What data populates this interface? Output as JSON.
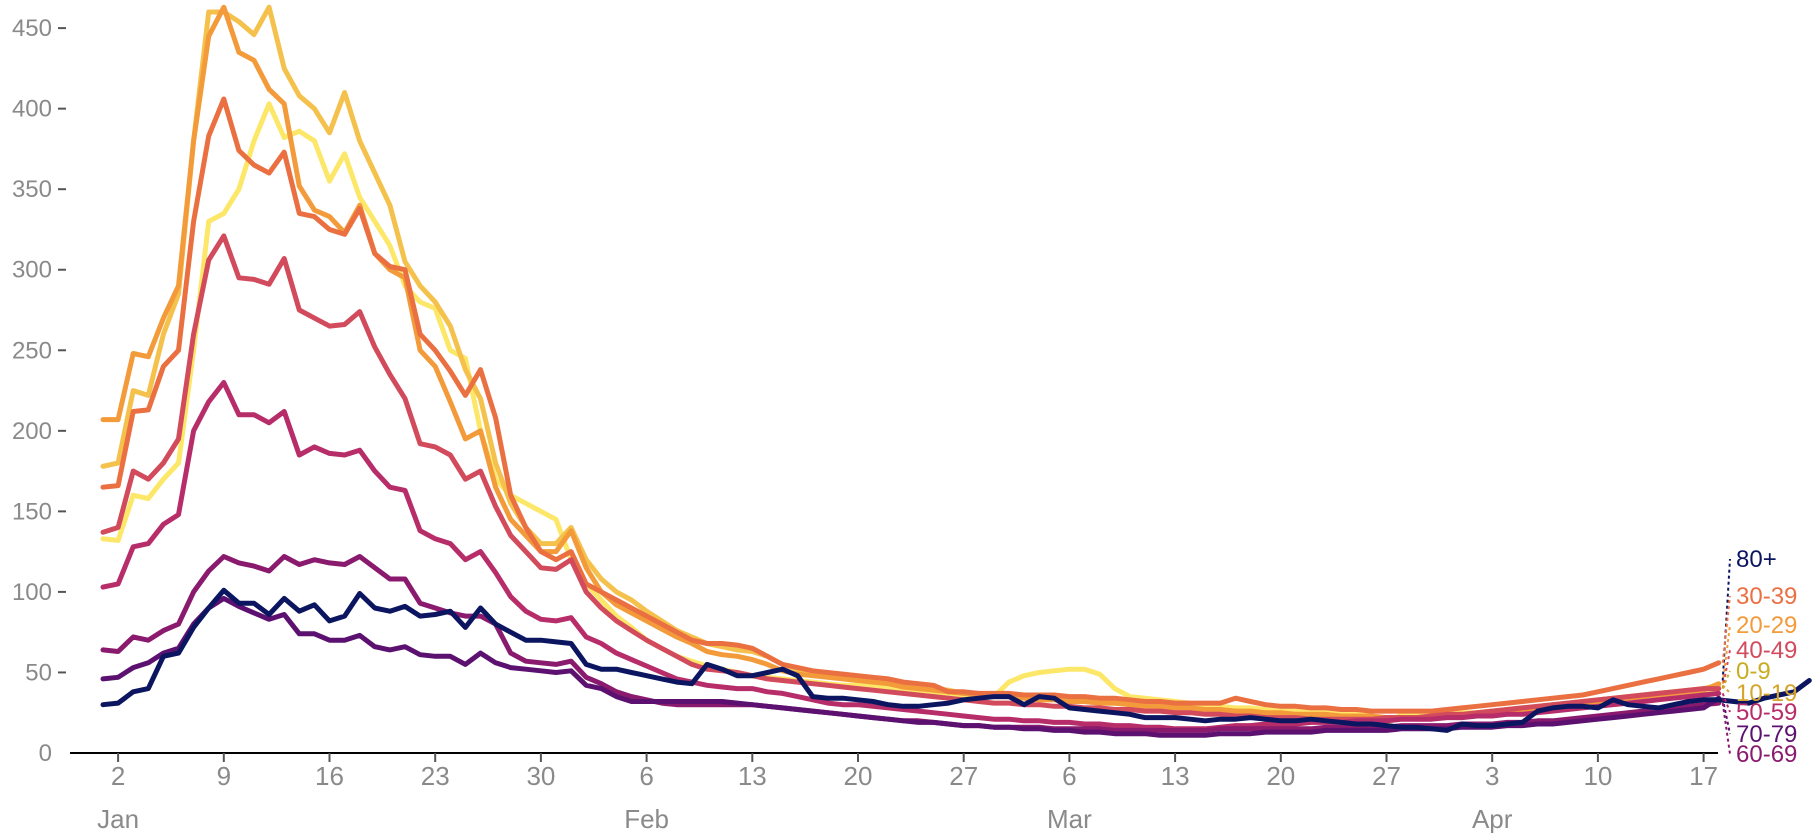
{
  "chart_data": {
    "type": "line",
    "x_start": "2021-01-01",
    "ylim": [
      0,
      460
    ],
    "y_ticks": [
      "0",
      "50",
      "100",
      "150",
      "200",
      "250",
      "300",
      "350",
      "400",
      "450"
    ],
    "x_tick_days": [
      "2",
      "9",
      "16",
      "23",
      "30",
      "6",
      "13",
      "20",
      "27",
      "6",
      "13",
      "20",
      "27",
      "3",
      "10",
      "17"
    ],
    "x_month_labels": [
      "Jan",
      "Feb",
      "Mar",
      "Apr"
    ],
    "grid": false,
    "legend": "right-inline",
    "series": [
      {
        "name": "0-9",
        "color": "#fde768",
        "values": [
          133,
          132,
          160,
          158,
          170,
          180,
          250,
          330,
          335,
          350,
          380,
          403,
          382,
          386,
          380,
          355,
          372,
          345,
          330,
          315,
          290,
          280,
          276,
          250,
          245,
          200,
          170,
          160,
          155,
          150,
          145,
          120,
          105,
          95,
          85,
          78,
          70,
          65,
          60,
          57,
          54,
          52,
          50,
          48,
          47,
          46,
          45,
          44,
          43,
          42,
          42,
          41,
          40,
          39,
          38,
          37,
          36,
          36,
          35,
          35,
          44,
          48,
          50,
          51,
          52,
          52,
          49,
          40,
          35,
          34,
          33,
          32,
          31,
          30,
          29,
          28,
          28,
          27,
          26,
          26,
          25,
          25,
          24,
          24,
          23,
          18,
          24,
          24,
          24,
          24,
          25,
          25,
          26,
          26,
          27,
          28,
          29,
          30,
          31,
          32,
          33,
          34,
          35,
          36,
          36,
          37,
          38,
          40
        ]
      },
      {
        "name": "10-19",
        "color": "#f5c14d",
        "values": [
          178,
          180,
          225,
          222,
          260,
          285,
          380,
          460,
          460,
          454,
          446,
          463,
          425,
          408,
          400,
          385,
          410,
          380,
          360,
          340,
          305,
          290,
          280,
          265,
          238,
          220,
          180,
          155,
          140,
          130,
          130,
          140,
          120,
          108,
          100,
          95,
          88,
          82,
          76,
          72,
          68,
          66,
          64,
          63,
          60,
          55,
          52,
          50,
          48,
          47,
          46,
          45,
          44,
          42,
          41,
          40,
          39,
          37,
          36,
          35,
          35,
          34,
          33,
          33,
          32,
          32,
          31,
          31,
          30,
          29,
          28,
          28,
          27,
          27,
          26,
          26,
          25,
          25,
          24,
          24,
          23,
          23,
          23,
          22,
          22,
          22,
          22,
          22,
          23,
          23,
          24,
          25,
          26,
          27,
          28,
          29,
          30,
          31,
          32,
          33,
          34,
          35,
          36,
          37,
          38,
          39,
          40,
          42
        ]
      },
      {
        "name": "20-29",
        "color": "#f39b3a",
        "values": [
          207,
          207,
          248,
          246,
          270,
          290,
          380,
          445,
          463,
          435,
          430,
          412,
          403,
          352,
          337,
          333,
          323,
          340,
          310,
          300,
          295,
          250,
          240,
          218,
          195,
          200,
          165,
          145,
          135,
          125,
          125,
          138,
          115,
          100,
          92,
          87,
          82,
          77,
          72,
          68,
          63,
          61,
          60,
          58,
          55,
          51,
          49,
          48,
          47,
          46,
          45,
          44,
          43,
          41,
          40,
          39,
          38,
          37,
          36,
          35,
          35,
          34,
          33,
          33,
          32,
          32,
          31,
          31,
          30,
          29,
          29,
          28,
          28,
          27,
          27,
          26,
          26,
          25,
          25,
          24,
          24,
          24,
          23,
          23,
          23,
          22,
          22,
          22,
          22,
          23,
          23,
          24,
          25,
          26,
          27,
          28,
          29,
          30,
          31,
          32,
          33,
          34,
          35,
          36,
          37,
          38,
          39,
          43
        ]
      },
      {
        "name": "30-39",
        "color": "#ea7042",
        "values": [
          165,
          166,
          212,
          213,
          240,
          250,
          330,
          383,
          406,
          374,
          365,
          360,
          373,
          335,
          333,
          325,
          322,
          338,
          310,
          302,
          300,
          260,
          250,
          237,
          222,
          238,
          208,
          160,
          140,
          125,
          120,
          125,
          105,
          100,
          95,
          90,
          85,
          80,
          75,
          70,
          68,
          68,
          67,
          65,
          60,
          55,
          53,
          51,
          50,
          49,
          48,
          47,
          46,
          44,
          43,
          42,
          38,
          38,
          37,
          37,
          37,
          36,
          36,
          36,
          35,
          35,
          34,
          34,
          33,
          32,
          32,
          31,
          31,
          31,
          31,
          34,
          32,
          30,
          29,
          29,
          28,
          28,
          27,
          27,
          26,
          26,
          26,
          26,
          26,
          27,
          28,
          29,
          30,
          31,
          32,
          33,
          34,
          35,
          36,
          38,
          40,
          42,
          44,
          46,
          48,
          50,
          52,
          56
        ]
      },
      {
        "name": "40-49",
        "color": "#d24b5c",
        "values": [
          137,
          140,
          175,
          170,
          180,
          195,
          260,
          306,
          321,
          295,
          294,
          291,
          307,
          275,
          270,
          265,
          266,
          274,
          252,
          235,
          220,
          192,
          190,
          185,
          170,
          175,
          153,
          135,
          125,
          115,
          114,
          120,
          100,
          90,
          82,
          76,
          70,
          65,
          60,
          55,
          52,
          51,
          50,
          48,
          46,
          45,
          44,
          43,
          42,
          41,
          40,
          39,
          38,
          37,
          36,
          35,
          34,
          33,
          32,
          31,
          31,
          30,
          30,
          29,
          29,
          28,
          28,
          27,
          27,
          26,
          26,
          25,
          25,
          24,
          24,
          23,
          23,
          22,
          22,
          22,
          21,
          21,
          21,
          21,
          21,
          22,
          22,
          22,
          23,
          24,
          24,
          25,
          26,
          27,
          28,
          29,
          30,
          31,
          32,
          33,
          34,
          35,
          36,
          37,
          38,
          39,
          40,
          40
        ]
      },
      {
        "name": "50-59",
        "color": "#b72d6a",
        "values": [
          103,
          105,
          128,
          130,
          142,
          148,
          200,
          218,
          230,
          210,
          210,
          205,
          212,
          185,
          190,
          186,
          185,
          188,
          175,
          165,
          163,
          138,
          133,
          130,
          120,
          125,
          112,
          97,
          88,
          83,
          82,
          84,
          72,
          68,
          62,
          58,
          54,
          50,
          46,
          44,
          42,
          41,
          40,
          40,
          38,
          37,
          35,
          33,
          31,
          30,
          30,
          29,
          28,
          27,
          26,
          25,
          24,
          23,
          22,
          21,
          21,
          20,
          20,
          19,
          19,
          18,
          18,
          17,
          17,
          16,
          16,
          15,
          15,
          15,
          16,
          17,
          17,
          18,
          18,
          18,
          19,
          19,
          19,
          20,
          20,
          20,
          21,
          21,
          21,
          22,
          22,
          23,
          23,
          24,
          24,
          25,
          26,
          27,
          28,
          29,
          30,
          31,
          32,
          33,
          34,
          35,
          36,
          37
        ]
      },
      {
        "name": "60-69",
        "color": "#8a1a6d",
        "values": [
          64,
          63,
          72,
          70,
          76,
          80,
          100,
          113,
          122,
          118,
          116,
          113,
          122,
          117,
          120,
          118,
          117,
          122,
          115,
          108,
          108,
          93,
          90,
          87,
          85,
          85,
          80,
          62,
          57,
          56,
          55,
          57,
          47,
          43,
          38,
          35,
          33,
          31,
          30,
          30,
          30,
          30,
          30,
          30,
          29,
          28,
          27,
          26,
          25,
          24,
          23,
          22,
          21,
          20,
          20,
          19,
          18,
          17,
          17,
          16,
          16,
          16,
          16,
          15,
          15,
          15,
          15,
          14,
          14,
          14,
          14,
          14,
          14,
          14,
          15,
          15,
          15,
          15,
          15,
          15,
          15,
          16,
          16,
          16,
          16,
          16,
          17,
          17,
          17,
          17,
          18,
          18,
          18,
          19,
          19,
          20,
          20,
          21,
          22,
          23,
          24,
          25,
          26,
          27,
          28,
          29,
          30,
          31
        ]
      },
      {
        "name": "70-79",
        "color": "#5c1170",
        "values": [
          46,
          47,
          53,
          56,
          62,
          65,
          80,
          90,
          96,
          91,
          87,
          83,
          86,
          74,
          74,
          70,
          70,
          73,
          66,
          64,
          66,
          61,
          60,
          60,
          55,
          62,
          56,
          53,
          52,
          51,
          50,
          51,
          42,
          40,
          35,
          32,
          32,
          32,
          32,
          32,
          32,
          32,
          31,
          30,
          29,
          28,
          27,
          26,
          25,
          24,
          23,
          22,
          21,
          20,
          19,
          19,
          18,
          17,
          17,
          16,
          16,
          15,
          15,
          14,
          14,
          13,
          13,
          12,
          12,
          12,
          11,
          11,
          11,
          11,
          12,
          12,
          12,
          13,
          13,
          13,
          13,
          14,
          14,
          14,
          14,
          14,
          15,
          15,
          15,
          15,
          16,
          16,
          16,
          17,
          17,
          18,
          18,
          19,
          20,
          21,
          22,
          23,
          24,
          25,
          26,
          27,
          28,
          34
        ]
      },
      {
        "name": "80+",
        "color": "#0c1660",
        "values": [
          30,
          31,
          38,
          40,
          60,
          62,
          78,
          90,
          101,
          93,
          93,
          86,
          96,
          88,
          92,
          82,
          85,
          99,
          90,
          88,
          91,
          85,
          86,
          88,
          78,
          90,
          80,
          75,
          70,
          70,
          69,
          68,
          55,
          52,
          52,
          50,
          48,
          46,
          44,
          43,
          55,
          52,
          48,
          48,
          50,
          52,
          48,
          35,
          34,
          34,
          33,
          32,
          30,
          29,
          29,
          30,
          31,
          33,
          34,
          35,
          35,
          30,
          35,
          34,
          28,
          27,
          26,
          25,
          24,
          22,
          22,
          22,
          21,
          20,
          21,
          21,
          22,
          21,
          20,
          20,
          21,
          20,
          19,
          18,
          18,
          17,
          16,
          16,
          15,
          14,
          18,
          17,
          17,
          18,
          19,
          26,
          28,
          29,
          29,
          28,
          33,
          30,
          29,
          28,
          30,
          32,
          33,
          33,
          32,
          31,
          34,
          36,
          38,
          45
        ]
      }
    ]
  }
}
